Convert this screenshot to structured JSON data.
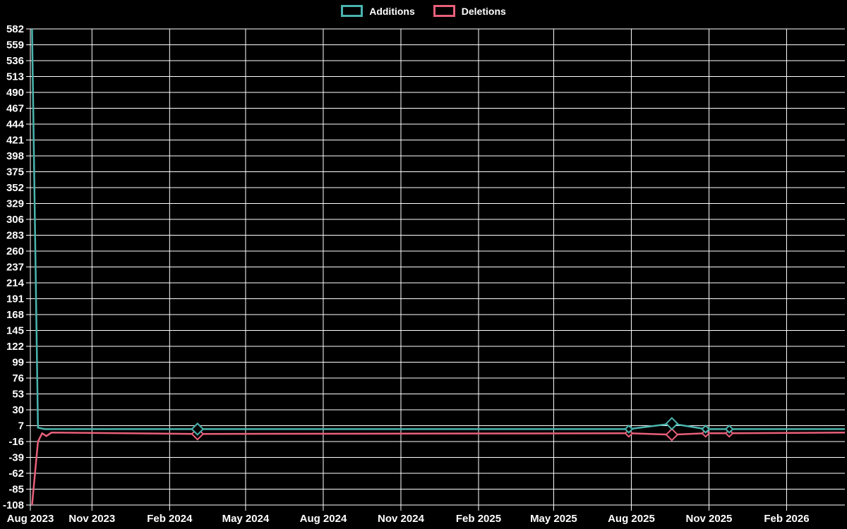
{
  "page": {
    "background": "#000000"
  },
  "legend": {
    "items": [
      {
        "label": "Additions",
        "color": "#4ab4ae"
      },
      {
        "label": "Deletions",
        "color": "#e8607a"
      }
    ]
  },
  "chart_data": {
    "type": "line",
    "grid": true,
    "grid_color": "#ffffff",
    "text_color": "#ffffff",
    "legend_position": "top-center",
    "x_axis": {
      "start": "2023-08-20",
      "end": "2026-04-11",
      "ticks": [
        {
          "date": "2023-08-20",
          "label": "Aug 2023"
        },
        {
          "date": "2023-11-01",
          "label": "Nov 2023"
        },
        {
          "date": "2024-02-01",
          "label": "Feb 2024"
        },
        {
          "date": "2024-05-01",
          "label": "May 2024"
        },
        {
          "date": "2024-08-01",
          "label": "Aug 2024"
        },
        {
          "date": "2024-11-01",
          "label": "Nov 2024"
        },
        {
          "date": "2025-02-01",
          "label": "Feb 2025"
        },
        {
          "date": "2025-05-01",
          "label": "May 2025"
        },
        {
          "date": "2025-08-01",
          "label": "Aug 2025"
        },
        {
          "date": "2025-11-01",
          "label": "Nov 2025"
        },
        {
          "date": "2026-02-01",
          "label": "Feb 2026"
        }
      ]
    },
    "y_axis": {
      "min": -108,
      "max": 582,
      "tick_step": 23,
      "ticks": [
        582,
        559,
        536,
        513,
        490,
        467,
        444,
        421,
        398,
        375,
        352,
        329,
        306,
        283,
        260,
        237,
        214,
        191,
        168,
        145,
        122,
        99,
        76,
        53,
        30,
        7,
        -16,
        -39,
        -62,
        -85,
        -108
      ]
    },
    "series": [
      {
        "name": "Additions",
        "color": "#4ab4ae",
        "points": [
          {
            "date": "2023-08-22",
            "value": 582
          },
          {
            "date": "2023-08-29",
            "value": 4
          },
          {
            "date": "2023-09-06",
            "value": 2
          },
          {
            "date": "2024-03-05",
            "value": 2,
            "marker": "large"
          },
          {
            "date": "2025-07-29",
            "value": 2,
            "marker": "small"
          },
          {
            "date": "2025-09-18",
            "value": 10,
            "marker": "large"
          },
          {
            "date": "2025-10-28",
            "value": 2,
            "marker": "small"
          },
          {
            "date": "2025-11-25",
            "value": 2,
            "marker": "small"
          },
          {
            "date": "2026-04-11",
            "value": 2
          }
        ]
      },
      {
        "name": "Deletions",
        "color": "#e8607a",
        "points": [
          {
            "date": "2023-08-22",
            "value": -108
          },
          {
            "date": "2023-08-29",
            "value": -16
          },
          {
            "date": "2023-09-03",
            "value": -4
          },
          {
            "date": "2023-09-08",
            "value": -8
          },
          {
            "date": "2023-09-14",
            "value": -3
          },
          {
            "date": "2024-03-05",
            "value": -5,
            "marker": "large"
          },
          {
            "date": "2025-07-29",
            "value": -4,
            "marker": "small"
          },
          {
            "date": "2025-09-18",
            "value": -6,
            "marker": "large"
          },
          {
            "date": "2025-10-28",
            "value": -4,
            "marker": "small"
          },
          {
            "date": "2025-11-25",
            "value": -4,
            "marker": "small"
          },
          {
            "date": "2026-04-11",
            "value": -3
          }
        ]
      }
    ]
  }
}
